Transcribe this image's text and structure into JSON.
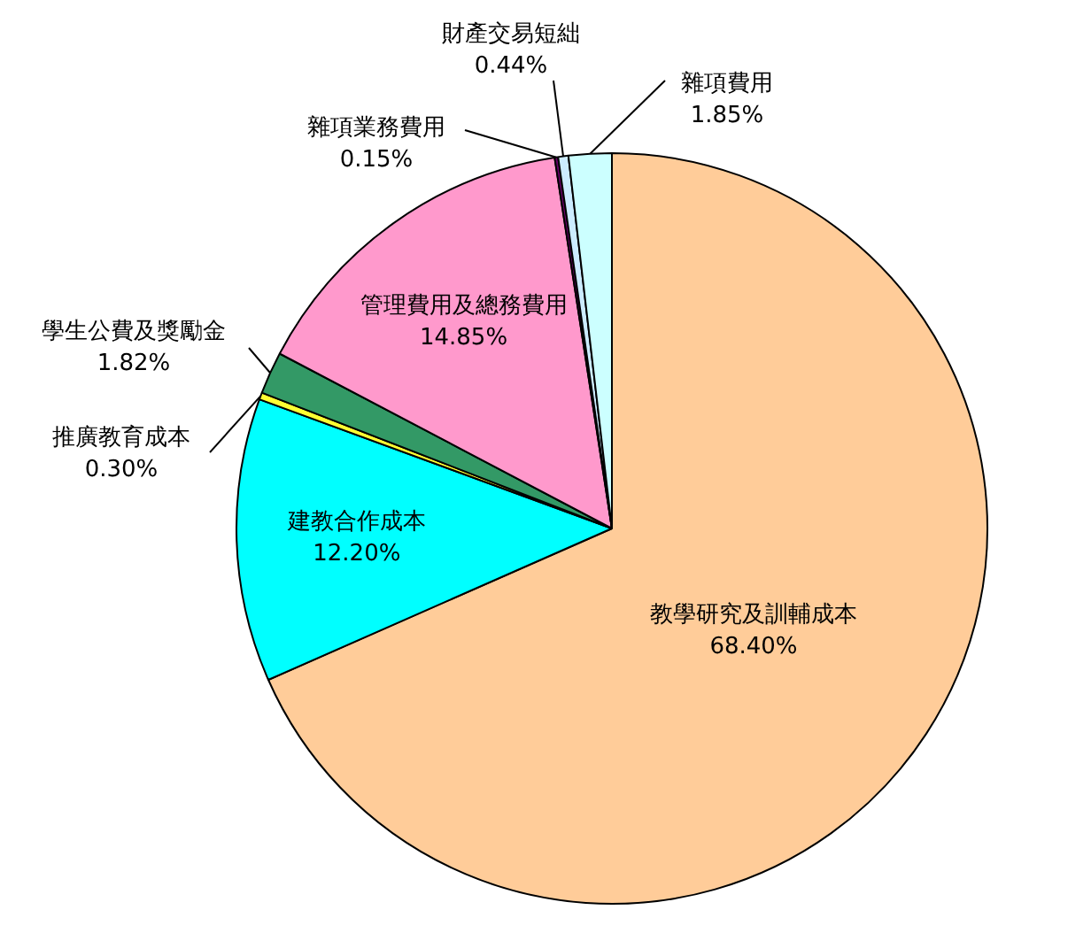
{
  "chart_data": {
    "type": "pie",
    "categories": [
      "教學研究及訓輔成本",
      "建教合作成本",
      "推廣教育成本",
      "學生公費及獎勵金",
      "管理費用及總務費用",
      "雜項業務費用",
      "財產交易短絀",
      "雜項費用"
    ],
    "values": [
      68.4,
      12.2,
      0.3,
      1.82,
      14.85,
      0.15,
      0.44,
      1.85
    ],
    "value_labels": [
      "68.40%",
      "12.20%",
      "0.30%",
      "1.82%",
      "14.85%",
      "0.15%",
      "0.44%",
      "1.85%"
    ],
    "colors": [
      "#ffcc99",
      "#00ffff",
      "#ffff33",
      "#339966",
      "#ff99cc",
      "#660066",
      "#ccecff",
      "#ccffff"
    ]
  }
}
